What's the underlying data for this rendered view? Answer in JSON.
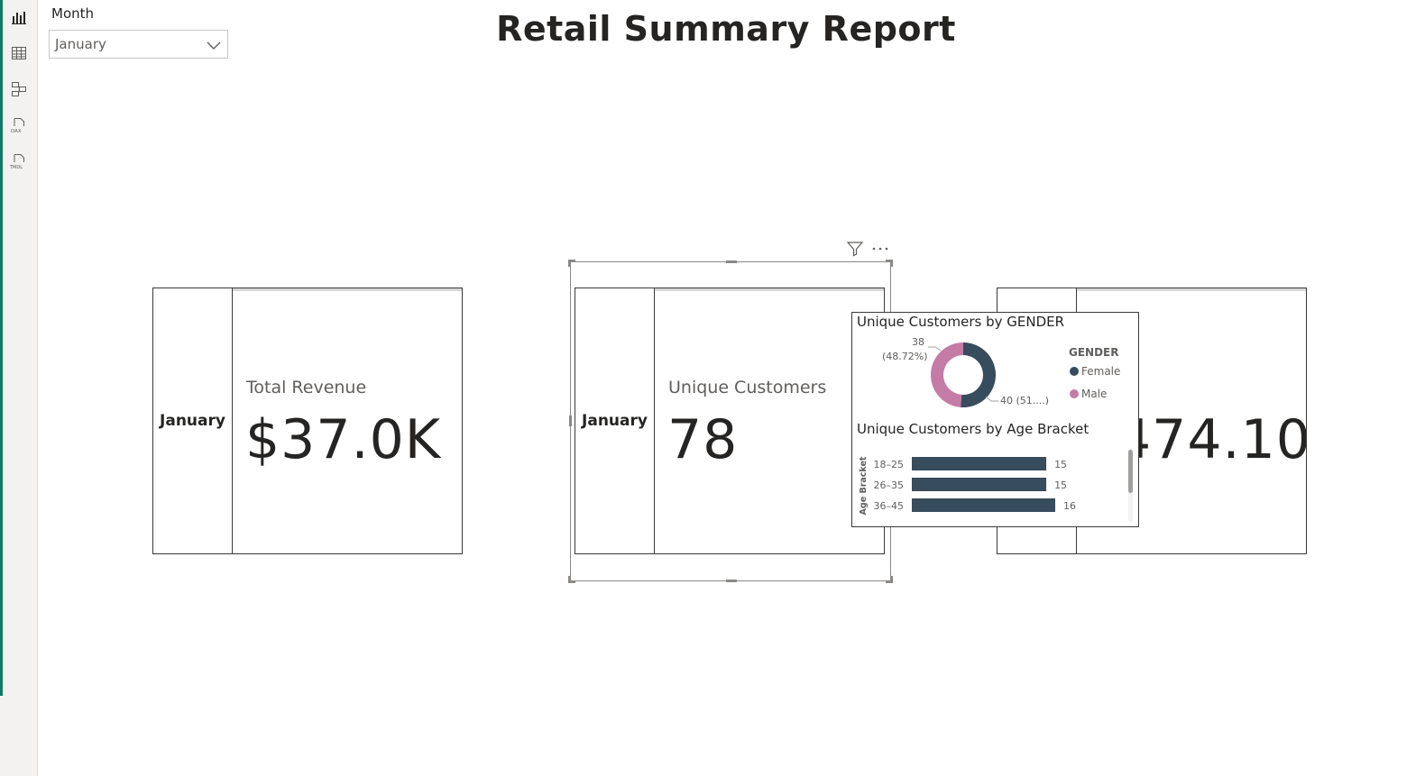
{
  "slicer": {
    "title": "Month",
    "selected": "January"
  },
  "report": {
    "title": "Retail Summary Report"
  },
  "cards": [
    {
      "month": "January",
      "label": "Total Revenue",
      "value": "$37.0K"
    },
    {
      "month": "January",
      "label": "Unique Customers",
      "value": "78"
    },
    {
      "value_partial": "474.10"
    }
  ],
  "tooltip": {
    "gender_title": "Unique Customers by GENDER",
    "legend_title": "GENDER",
    "age_title": "Unique Customers by Age Bracket",
    "age_axis_label": "Age Bracket"
  },
  "chart_data": [
    {
      "type": "pie",
      "title": "Unique Customers by GENDER",
      "legend": "right",
      "slices": [
        {
          "name": "Female",
          "value": 40,
          "label": "40 (51....)",
          "color": "#374c5c"
        },
        {
          "name": "Male",
          "value": 38,
          "label": "38",
          "label2": "(48.72%)",
          "color": "#c47ca6"
        }
      ]
    },
    {
      "type": "bar",
      "orientation": "horizontal",
      "title": "Unique Customers by Age Bracket",
      "ylabel": "Age Bracket",
      "categories": [
        "18–25",
        "26–35",
        "36–45"
      ],
      "values": [
        15,
        15,
        16
      ],
      "color": "#374c5c",
      "xlim": [
        0,
        16
      ]
    }
  ],
  "colors": {
    "accent": "#117865",
    "female": "#374c5c",
    "male": "#c47ca6"
  },
  "icons": {
    "rail": [
      "report-view-icon",
      "table-view-icon",
      "model-view-icon",
      "dax-query-icon",
      "tmdl-view-icon"
    ],
    "header": [
      "filter-icon",
      "more-options-icon"
    ]
  }
}
